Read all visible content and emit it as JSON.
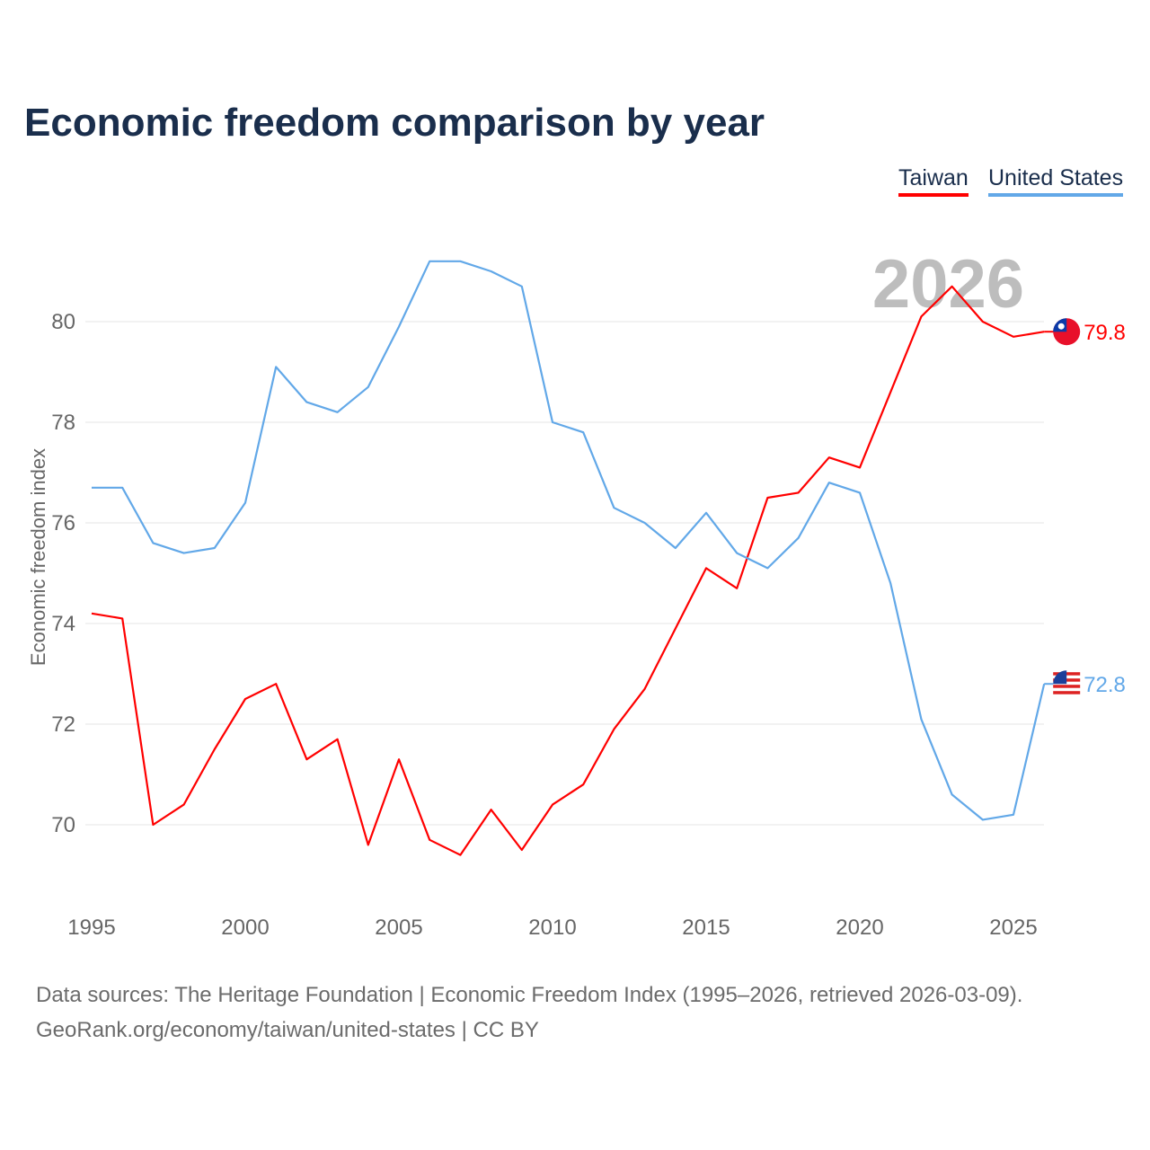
{
  "chart_data": {
    "type": "line",
    "title": "Economic freedom comparison by year",
    "xlabel": "",
    "ylabel": "Economic freedom index",
    "x": [
      1995,
      1996,
      1997,
      1998,
      1999,
      2000,
      2001,
      2002,
      2003,
      2004,
      2005,
      2006,
      2007,
      2008,
      2009,
      2010,
      2011,
      2012,
      2013,
      2014,
      2015,
      2016,
      2017,
      2018,
      2019,
      2020,
      2021,
      2022,
      2023,
      2024,
      2025,
      2026
    ],
    "xticks": [
      "1995",
      "2000",
      "2005",
      "2010",
      "2015",
      "2020",
      "2025"
    ],
    "yticks": [
      "70",
      "72",
      "74",
      "76",
      "78",
      "80"
    ],
    "ylim": [
      68.8,
      81.8
    ],
    "xlim": [
      1995,
      2026
    ],
    "grid": true,
    "legend_position": "top-right",
    "current_year_label": "2026",
    "series": [
      {
        "name": "Taiwan",
        "color": "#ff0000",
        "end_label": "79.8",
        "values": [
          74.2,
          74.1,
          70.0,
          70.4,
          71.5,
          72.5,
          72.8,
          71.3,
          71.7,
          69.6,
          71.3,
          69.7,
          69.4,
          70.3,
          69.5,
          70.4,
          70.8,
          71.9,
          72.7,
          73.9,
          75.1,
          74.7,
          76.5,
          76.6,
          77.3,
          77.1,
          78.6,
          80.1,
          80.7,
          80.0,
          79.7,
          79.8
        ]
      },
      {
        "name": "United States",
        "color": "#62a8e8",
        "end_label": "72.8",
        "values": [
          76.7,
          76.7,
          75.6,
          75.4,
          75.5,
          76.4,
          79.1,
          78.4,
          78.2,
          78.7,
          79.9,
          81.2,
          81.2,
          81.0,
          80.7,
          78.0,
          77.8,
          76.3,
          76.0,
          75.5,
          76.2,
          75.4,
          75.1,
          75.7,
          76.8,
          76.6,
          74.8,
          72.1,
          70.6,
          70.1,
          70.2,
          72.8
        ]
      }
    ]
  },
  "footer": {
    "line1": "Data sources: The Heritage Foundation | Economic Freedom Index (1995–2026, retrieved 2026-03-09).",
    "line2": "GeoRank.org/economy/taiwan/united-states | CC BY"
  }
}
